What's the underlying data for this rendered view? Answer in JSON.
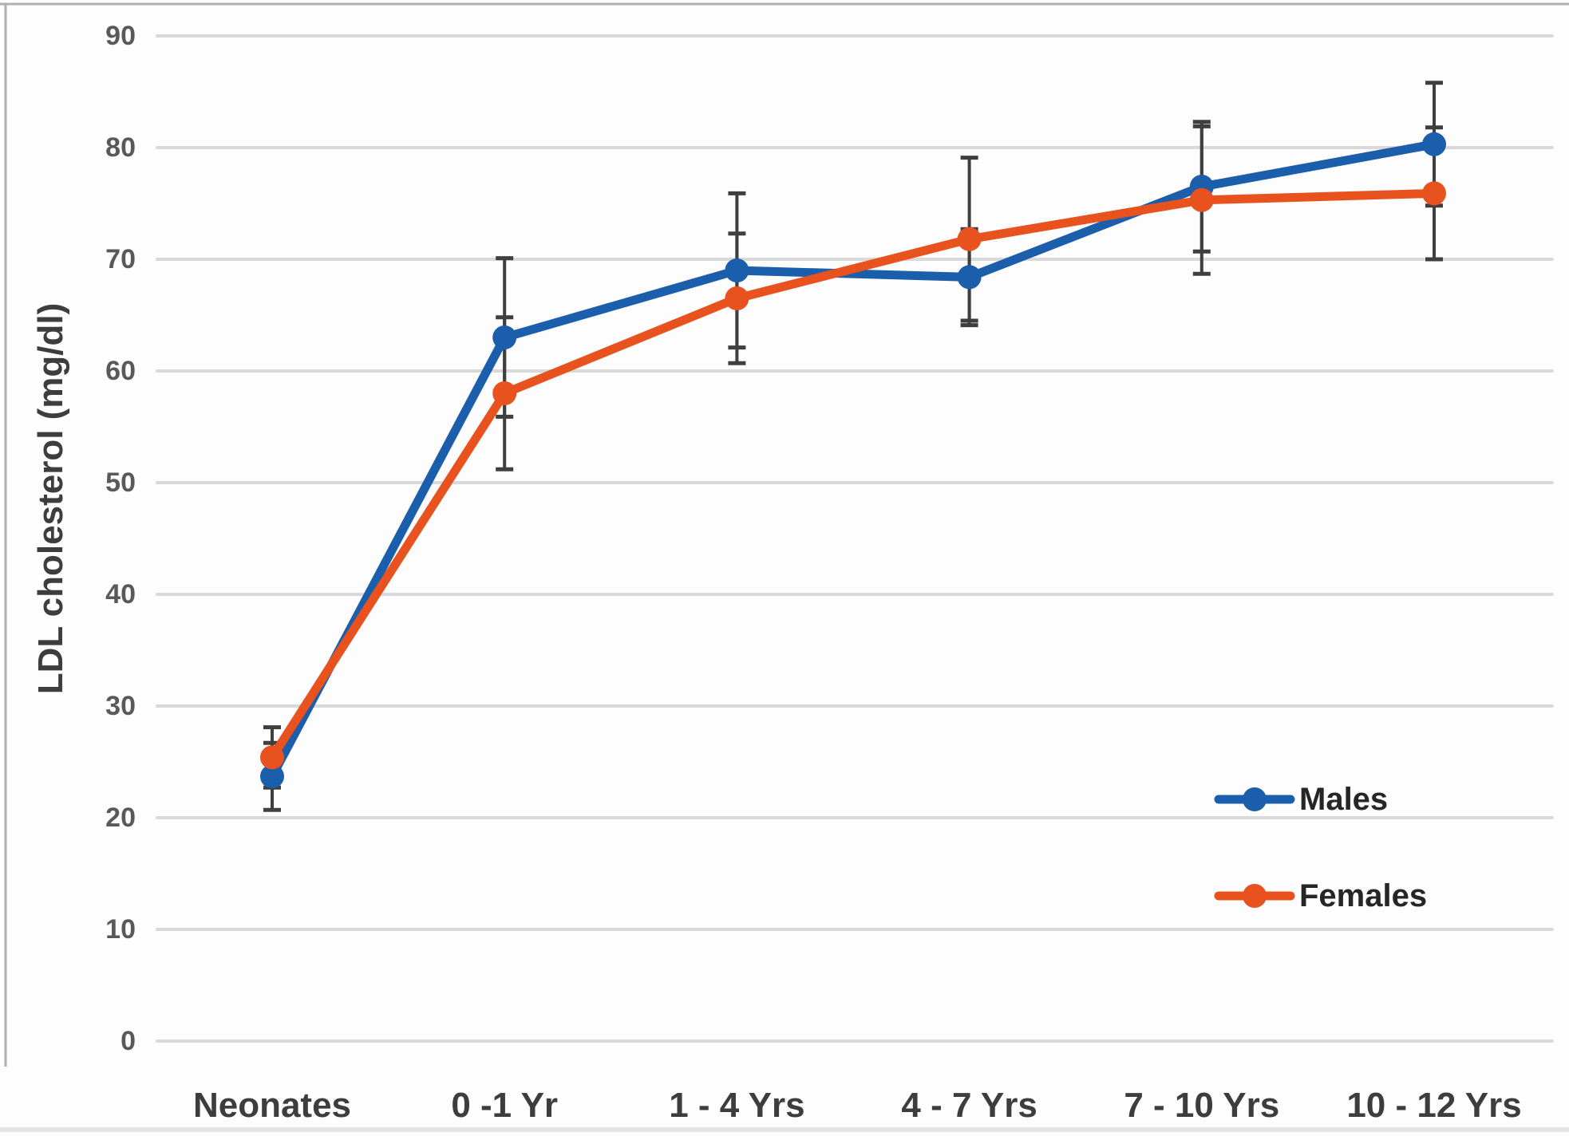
{
  "chart_data": {
    "type": "line",
    "title": "",
    "xlabel": "",
    "ylabel": "LDL cholesterol (mg/dl)",
    "categories": [
      "Neonates",
      "0 -1 Yr",
      "1 - 4 Yrs",
      "4 - 7 Yrs",
      "7 - 10 Yrs",
      "10 - 12 Yrs"
    ],
    "yticks": [
      0,
      10,
      20,
      30,
      40,
      50,
      60,
      70,
      80,
      90
    ],
    "ylim": [
      0,
      90
    ],
    "grid": "horizontal",
    "markers": "circle",
    "error_bars": true,
    "legend_position": "inside-lower-right",
    "series": [
      {
        "name": "Males",
        "color": "#1b5eac",
        "values": [
          23.7,
          63.0,
          69.0,
          68.4,
          76.5,
          80.3
        ],
        "error": [
          3.0,
          7.1,
          6.9,
          4.3,
          5.8,
          5.5
        ]
      },
      {
        "name": "Females",
        "color": "#e8521f",
        "values": [
          25.4,
          58.0,
          66.5,
          71.8,
          75.3,
          75.9
        ],
        "error": [
          2.7,
          6.8,
          5.8,
          7.3,
          6.6,
          5.9
        ]
      }
    ],
    "colors": {
      "gridline": "#d9d9d9",
      "error_bar": "#3f3f3f",
      "y_tick_text": "#595959",
      "x_tick_text": "#3d3d3d",
      "legend_text": "#262626",
      "frame_border": "#b0b0b0",
      "background": "#ffffff"
    }
  }
}
